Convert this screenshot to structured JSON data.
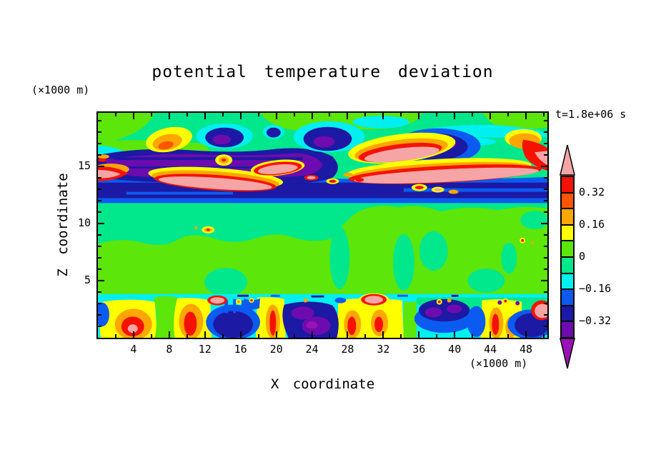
{
  "page": {
    "background": "#FFFFFF"
  },
  "chart_data": {
    "type": "heatmap",
    "title": "potential temperature deviation",
    "annotation": "t=1.8e+06 s",
    "x_axis": {
      "label": "X coordinate",
      "unit": "(×1000 m)",
      "range": [
        0,
        50.4
      ],
      "major_ticks": [
        4,
        8,
        12,
        16,
        20,
        24,
        28,
        32,
        36,
        40,
        44,
        48
      ],
      "minor_tick_step": 2
    },
    "y_axis": {
      "label": "Z coordinate",
      "unit": "(×1000 m)",
      "range": [
        0,
        19.7
      ],
      "major_ticks": [
        5,
        10,
        15
      ],
      "minor_tick_step": 1
    },
    "colorbar": {
      "contour_levels": [
        -0.4,
        -0.32,
        -0.24,
        -0.16,
        -0.08,
        0,
        0.08,
        0.16,
        0.24,
        0.32,
        0.4
      ],
      "segment_colors_top_to_bottom": [
        "#F51200",
        "#FF5500",
        "#FFA600",
        "#FFFF00",
        "#5CE60A",
        "#00E78C",
        "#00EFEF",
        "#0B5BF0",
        "#1C19A4",
        "#6E0BAE"
      ],
      "overflow_top_color": "#F5A5A5",
      "overflow_bottom_color": "#9B11B8",
      "tick_labels": [
        {
          "boundary": 1,
          "text": "0.32"
        },
        {
          "boundary": 3,
          "text": "0.16"
        },
        {
          "boundary": 5,
          "text": "0"
        },
        {
          "boundary": 7,
          "text": "−0.16"
        },
        {
          "boundary": 9,
          "text": "−0.32"
        }
      ]
    },
    "palette": {
      "pink": "#F5A5A5",
      "red": "#F51200",
      "orangered": "#FF5500",
      "orange": "#FFA600",
      "yellow": "#FFFF00",
      "chartreuse": "#5CE60A",
      "springgreen": "#00E78C",
      "cyan": "#00EFEF",
      "blue": "#0B5BF0",
      "navy": "#1C19A4",
      "indigo": "#6E0BAE",
      "magenta": "#9B11B8"
    },
    "field_features": [
      "z≈17–19.7 km: weak anomalies (−0.08…+0.08, two green tones) with cyan pockets near −0.16",
      "z≈13–17 km: breaking gravity-wave layer — broad cold cells below −0.32 (navy/violet) interleaved with warm tongues above +0.4 (pink cores rimmed red/orange/yellow)",
      "z≈12–13.5 km: continuous cold shear band (−0.24…−0.4) spanning the whole domain",
      "z≈4–12 km: quiescent layer, |deviation| ≤ 0.08, with a few tiny warm spots",
      "z≈3.7 km: thin cold interface line near −0.16 (cyan)",
      "z≈0–3.5 km: convective boundary layer with alternating warm plumes (cores above +0.4) and cold pools (cores below −0.4)"
    ]
  }
}
